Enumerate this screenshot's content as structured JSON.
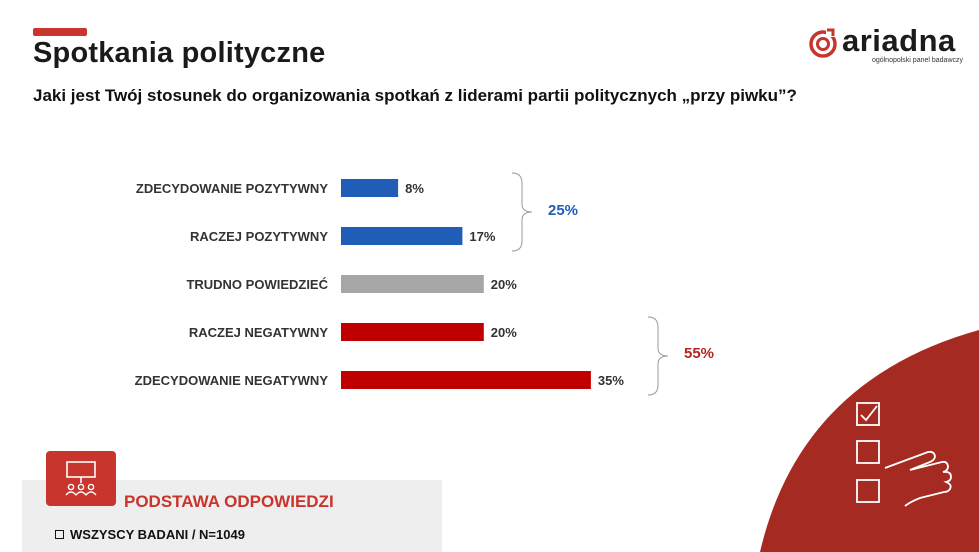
{
  "header": {
    "title": "Spotkania polityczne",
    "question": "Jaki jest Twój stosunek do organizowania spotkań z liderami partii politycznych „przy piwku”?"
  },
  "logo": {
    "name": "ariadna",
    "subtitle": "ogólnopolski panel badawczy"
  },
  "chart_data": {
    "type": "bar",
    "orientation": "horizontal",
    "categories": [
      "ZDECYDOWANIE POZYTYWNY",
      "RACZEJ POZYTYWNY",
      "TRUDNO POWIEDZIEĆ",
      "RACZEJ NEGATYWNY",
      "ZDECYDOWANIE NEGATYWNY"
    ],
    "values": [
      8,
      17,
      20,
      20,
      35
    ],
    "value_labels": [
      "8%",
      "17%",
      "20%",
      "20%",
      "35%"
    ],
    "colors": [
      "#1f5db6",
      "#1f5db6",
      "#a6a6a6",
      "#c00000",
      "#c00000"
    ],
    "groups": [
      {
        "label": "25%",
        "from": 0,
        "to": 1,
        "color": "#1f5db6"
      },
      {
        "label": "55%",
        "from": 3,
        "to": 4,
        "color": "#b22722"
      }
    ],
    "xlim": [
      0,
      35
    ],
    "grid": false
  },
  "base": {
    "title": "PODSTAWA ODPOWIEDZI",
    "line": "WSZYSCY BADANI / N=1049"
  },
  "colors": {
    "accent": "#c7352c",
    "positive": "#1f5db6",
    "neutral": "#a6a6a6",
    "negative": "#c00000",
    "decor": "#a52a22"
  },
  "icons": [
    "ariadna-logo-icon",
    "meeting-icon",
    "checklist-icon",
    "pointing-hand-icon",
    "checkbox-icon"
  ]
}
